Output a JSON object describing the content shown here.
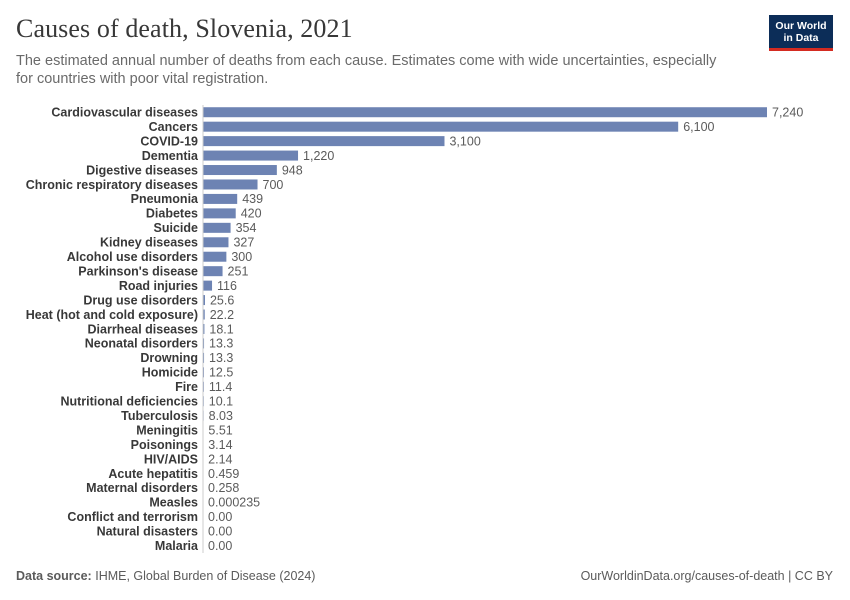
{
  "header": {
    "title": "Causes of death, Slovenia, 2021",
    "subtitle": "The estimated annual number of deaths from each cause. Estimates come with wide uncertainties, especially for countries with poor vital registration."
  },
  "logo": {
    "line1": "Our World",
    "line2": "in Data"
  },
  "footer": {
    "source_label": "Data source:",
    "source_text": "IHME, Global Burden of Disease (2024)",
    "url_license": "OurWorldinData.org/causes-of-death | CC BY"
  },
  "colors": {
    "bar": "#6d83b3",
    "label": "#383838",
    "value": "#5b5b5b",
    "axis": "#cccccc"
  },
  "chart_data": {
    "type": "bar",
    "orientation": "horizontal",
    "title": "Causes of death, Slovenia, 2021",
    "xlabel": "",
    "ylabel": "",
    "xlim": [
      0,
      7240
    ],
    "categories": [
      "Cardiovascular diseases",
      "Cancers",
      "COVID-19",
      "Dementia",
      "Digestive diseases",
      "Chronic respiratory diseases",
      "Pneumonia",
      "Diabetes",
      "Suicide",
      "Kidney diseases",
      "Alcohol use disorders",
      "Parkinson's disease",
      "Road injuries",
      "Drug use disorders",
      "Heat (hot and cold exposure)",
      "Diarrheal diseases",
      "Neonatal disorders",
      "Drowning",
      "Homicide",
      "Fire",
      "Nutritional deficiencies",
      "Tuberculosis",
      "Meningitis",
      "Poisonings",
      "HIV/AIDS",
      "Acute hepatitis",
      "Maternal disorders",
      "Measles",
      "Conflict and terrorism",
      "Natural disasters",
      "Malaria"
    ],
    "values": [
      7240,
      6100,
      3100,
      1220,
      948,
      700,
      439,
      420,
      354,
      327,
      300,
      251,
      116,
      25.6,
      22.2,
      18.1,
      13.3,
      13.3,
      12.5,
      11.4,
      10.1,
      8.03,
      5.51,
      3.14,
      2.14,
      0.459,
      0.258,
      0.000235,
      0,
      0,
      0
    ],
    "value_labels": [
      "7,240",
      "6,100",
      "3,100",
      "1,220",
      "948",
      "700",
      "439",
      "420",
      "354",
      "327",
      "300",
      "251",
      "116",
      "25.6",
      "22.2",
      "18.1",
      "13.3",
      "13.3",
      "12.5",
      "11.4",
      "10.1",
      "8.03",
      "5.51",
      "3.14",
      "2.14",
      "0.459",
      "0.258",
      "0.000235",
      "0.00",
      "0.00",
      "0.00"
    ]
  }
}
